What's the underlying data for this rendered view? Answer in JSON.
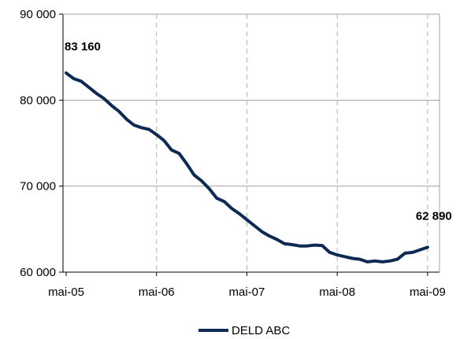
{
  "chart_data": {
    "type": "line",
    "title": "",
    "xlabel": "",
    "ylabel": "",
    "ylim": [
      60000,
      90000
    ],
    "y_ticks": [
      60000,
      70000,
      80000,
      90000
    ],
    "y_tick_labels": [
      "60 000",
      "70 000",
      "80 000",
      "90 000"
    ],
    "x_range": [
      "2005-05",
      "2009-05"
    ],
    "x_tick_labels": [
      "mai-05",
      "mai-06",
      "mai-07",
      "mai-08",
      "mai-09"
    ],
    "grid": {
      "horizontal": true,
      "vertical": "dashed"
    },
    "legend_position": "bottom",
    "series": [
      {
        "name": "DELD ABC",
        "color": "#0d2a55",
        "x": [
          "2005-05",
          "2005-06",
          "2005-07",
          "2005-08",
          "2005-09",
          "2005-10",
          "2005-11",
          "2005-12",
          "2006-01",
          "2006-02",
          "2006-03",
          "2006-04",
          "2006-05",
          "2006-06",
          "2006-07",
          "2006-08",
          "2006-09",
          "2006-10",
          "2006-11",
          "2006-12",
          "2007-01",
          "2007-02",
          "2007-03",
          "2007-04",
          "2007-05",
          "2007-06",
          "2007-07",
          "2007-08",
          "2007-09",
          "2007-10",
          "2007-11",
          "2007-12",
          "2008-01",
          "2008-02",
          "2008-03",
          "2008-04",
          "2008-05",
          "2008-06",
          "2008-07",
          "2008-08",
          "2008-09",
          "2008-10",
          "2008-11",
          "2008-12",
          "2009-01",
          "2009-02",
          "2009-03",
          "2009-04",
          "2009-05"
        ],
        "values": [
          83160,
          82500,
          82200,
          81500,
          80800,
          80200,
          79400,
          78700,
          77800,
          77100,
          76800,
          76600,
          76000,
          75300,
          74200,
          73800,
          72600,
          71300,
          70600,
          69700,
          68600,
          68200,
          67400,
          66800,
          66100,
          65400,
          64700,
          64200,
          63800,
          63300,
          63200,
          63050,
          63050,
          63150,
          63100,
          62300,
          62000,
          61800,
          61600,
          61500,
          61200,
          61300,
          61200,
          61300,
          61500,
          62200,
          62300,
          62600,
          62890
        ],
        "labels": [
          {
            "index": 0,
            "text": "83 160"
          },
          {
            "index": 48,
            "text": "62 890"
          }
        ]
      }
    ]
  }
}
